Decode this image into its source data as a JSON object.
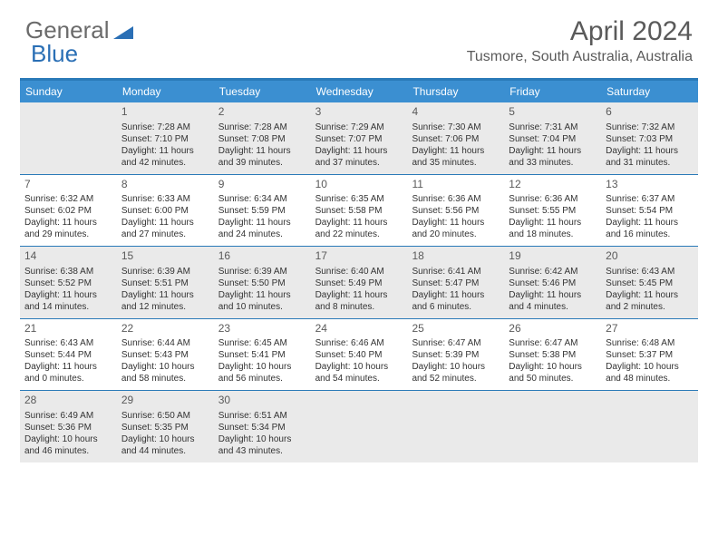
{
  "brand": {
    "part1": "General",
    "part2": "Blue"
  },
  "month_title": "April 2024",
  "location": "Tusmore, South Australia, Australia",
  "colors": {
    "header_bar": "#3b8fd1",
    "rule": "#2a7ab8",
    "shade": "#eaeaea",
    "text": "#333333",
    "title_text": "#5a5a5a"
  },
  "dow": [
    "Sunday",
    "Monday",
    "Tuesday",
    "Wednesday",
    "Thursday",
    "Friday",
    "Saturday"
  ],
  "weeks": [
    [
      {
        "n": "",
        "sr": "",
        "ss": "",
        "dl": ""
      },
      {
        "n": "1",
        "sr": "Sunrise: 7:28 AM",
        "ss": "Sunset: 7:10 PM",
        "dl": "Daylight: 11 hours and 42 minutes."
      },
      {
        "n": "2",
        "sr": "Sunrise: 7:28 AM",
        "ss": "Sunset: 7:08 PM",
        "dl": "Daylight: 11 hours and 39 minutes."
      },
      {
        "n": "3",
        "sr": "Sunrise: 7:29 AM",
        "ss": "Sunset: 7:07 PM",
        "dl": "Daylight: 11 hours and 37 minutes."
      },
      {
        "n": "4",
        "sr": "Sunrise: 7:30 AM",
        "ss": "Sunset: 7:06 PM",
        "dl": "Daylight: 11 hours and 35 minutes."
      },
      {
        "n": "5",
        "sr": "Sunrise: 7:31 AM",
        "ss": "Sunset: 7:04 PM",
        "dl": "Daylight: 11 hours and 33 minutes."
      },
      {
        "n": "6",
        "sr": "Sunrise: 7:32 AM",
        "ss": "Sunset: 7:03 PM",
        "dl": "Daylight: 11 hours and 31 minutes."
      }
    ],
    [
      {
        "n": "7",
        "sr": "Sunrise: 6:32 AM",
        "ss": "Sunset: 6:02 PM",
        "dl": "Daylight: 11 hours and 29 minutes."
      },
      {
        "n": "8",
        "sr": "Sunrise: 6:33 AM",
        "ss": "Sunset: 6:00 PM",
        "dl": "Daylight: 11 hours and 27 minutes."
      },
      {
        "n": "9",
        "sr": "Sunrise: 6:34 AM",
        "ss": "Sunset: 5:59 PM",
        "dl": "Daylight: 11 hours and 24 minutes."
      },
      {
        "n": "10",
        "sr": "Sunrise: 6:35 AM",
        "ss": "Sunset: 5:58 PM",
        "dl": "Daylight: 11 hours and 22 minutes."
      },
      {
        "n": "11",
        "sr": "Sunrise: 6:36 AM",
        "ss": "Sunset: 5:56 PM",
        "dl": "Daylight: 11 hours and 20 minutes."
      },
      {
        "n": "12",
        "sr": "Sunrise: 6:36 AM",
        "ss": "Sunset: 5:55 PM",
        "dl": "Daylight: 11 hours and 18 minutes."
      },
      {
        "n": "13",
        "sr": "Sunrise: 6:37 AM",
        "ss": "Sunset: 5:54 PM",
        "dl": "Daylight: 11 hours and 16 minutes."
      }
    ],
    [
      {
        "n": "14",
        "sr": "Sunrise: 6:38 AM",
        "ss": "Sunset: 5:52 PM",
        "dl": "Daylight: 11 hours and 14 minutes."
      },
      {
        "n": "15",
        "sr": "Sunrise: 6:39 AM",
        "ss": "Sunset: 5:51 PM",
        "dl": "Daylight: 11 hours and 12 minutes."
      },
      {
        "n": "16",
        "sr": "Sunrise: 6:39 AM",
        "ss": "Sunset: 5:50 PM",
        "dl": "Daylight: 11 hours and 10 minutes."
      },
      {
        "n": "17",
        "sr": "Sunrise: 6:40 AM",
        "ss": "Sunset: 5:49 PM",
        "dl": "Daylight: 11 hours and 8 minutes."
      },
      {
        "n": "18",
        "sr": "Sunrise: 6:41 AM",
        "ss": "Sunset: 5:47 PM",
        "dl": "Daylight: 11 hours and 6 minutes."
      },
      {
        "n": "19",
        "sr": "Sunrise: 6:42 AM",
        "ss": "Sunset: 5:46 PM",
        "dl": "Daylight: 11 hours and 4 minutes."
      },
      {
        "n": "20",
        "sr": "Sunrise: 6:43 AM",
        "ss": "Sunset: 5:45 PM",
        "dl": "Daylight: 11 hours and 2 minutes."
      }
    ],
    [
      {
        "n": "21",
        "sr": "Sunrise: 6:43 AM",
        "ss": "Sunset: 5:44 PM",
        "dl": "Daylight: 11 hours and 0 minutes."
      },
      {
        "n": "22",
        "sr": "Sunrise: 6:44 AM",
        "ss": "Sunset: 5:43 PM",
        "dl": "Daylight: 10 hours and 58 minutes."
      },
      {
        "n": "23",
        "sr": "Sunrise: 6:45 AM",
        "ss": "Sunset: 5:41 PM",
        "dl": "Daylight: 10 hours and 56 minutes."
      },
      {
        "n": "24",
        "sr": "Sunrise: 6:46 AM",
        "ss": "Sunset: 5:40 PM",
        "dl": "Daylight: 10 hours and 54 minutes."
      },
      {
        "n": "25",
        "sr": "Sunrise: 6:47 AM",
        "ss": "Sunset: 5:39 PM",
        "dl": "Daylight: 10 hours and 52 minutes."
      },
      {
        "n": "26",
        "sr": "Sunrise: 6:47 AM",
        "ss": "Sunset: 5:38 PM",
        "dl": "Daylight: 10 hours and 50 minutes."
      },
      {
        "n": "27",
        "sr": "Sunrise: 6:48 AM",
        "ss": "Sunset: 5:37 PM",
        "dl": "Daylight: 10 hours and 48 minutes."
      }
    ],
    [
      {
        "n": "28",
        "sr": "Sunrise: 6:49 AM",
        "ss": "Sunset: 5:36 PM",
        "dl": "Daylight: 10 hours and 46 minutes."
      },
      {
        "n": "29",
        "sr": "Sunrise: 6:50 AM",
        "ss": "Sunset: 5:35 PM",
        "dl": "Daylight: 10 hours and 44 minutes."
      },
      {
        "n": "30",
        "sr": "Sunrise: 6:51 AM",
        "ss": "Sunset: 5:34 PM",
        "dl": "Daylight: 10 hours and 43 minutes."
      },
      {
        "n": "",
        "sr": "",
        "ss": "",
        "dl": ""
      },
      {
        "n": "",
        "sr": "",
        "ss": "",
        "dl": ""
      },
      {
        "n": "",
        "sr": "",
        "ss": "",
        "dl": ""
      },
      {
        "n": "",
        "sr": "",
        "ss": "",
        "dl": ""
      }
    ]
  ]
}
